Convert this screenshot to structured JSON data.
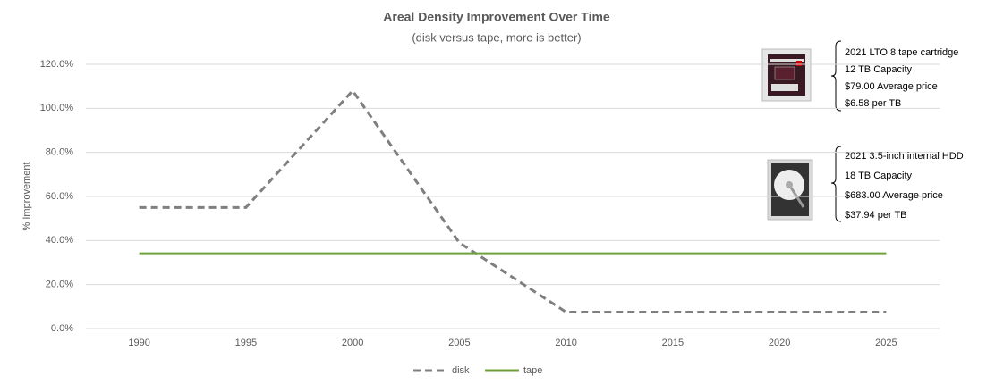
{
  "chart_data": {
    "type": "line",
    "title": "Areal Density Improvement Over Time",
    "subtitle": "(disk versus tape, more is better)",
    "y_label": "% Improvement",
    "categories": [
      "1990",
      "1995",
      "2000",
      "2005",
      "2010",
      "2015",
      "2020",
      "2025"
    ],
    "series": [
      {
        "name": "disk",
        "color": "#7f7f7f",
        "dashed": true,
        "values": [
          55,
          55,
          108,
          39,
          7.5,
          7.5,
          7.5,
          7.5
        ]
      },
      {
        "name": "tape",
        "color": "#70a03a",
        "dashed": false,
        "values": [
          34,
          34,
          34,
          34,
          34,
          34,
          34,
          34
        ]
      }
    ],
    "ylim": [
      0,
      120
    ],
    "yticks": [
      {
        "value": 0,
        "label": "0.0%"
      },
      {
        "value": 20,
        "label": "20.0%"
      },
      {
        "value": 40,
        "label": "40.0%"
      },
      {
        "value": 60,
        "label": "60.0%"
      },
      {
        "value": 80,
        "label": "80.0%"
      },
      {
        "value": 100,
        "label": "100.0%"
      },
      {
        "value": 120,
        "label": "120.0%"
      }
    ],
    "grid": true,
    "legend": "bottom",
    "annotations": [
      {
        "lines": [
          "2021 LTO 8 tape cartridge",
          "12 TB  Capacity",
          "$79.00 Average price",
          "$6.58 per TB"
        ]
      },
      {
        "lines": [
          "2021 3.5-inch internal HDD",
          "18 TB  Capacity",
          "$683.00 Average price",
          "$37.94 per TB"
        ]
      }
    ]
  }
}
